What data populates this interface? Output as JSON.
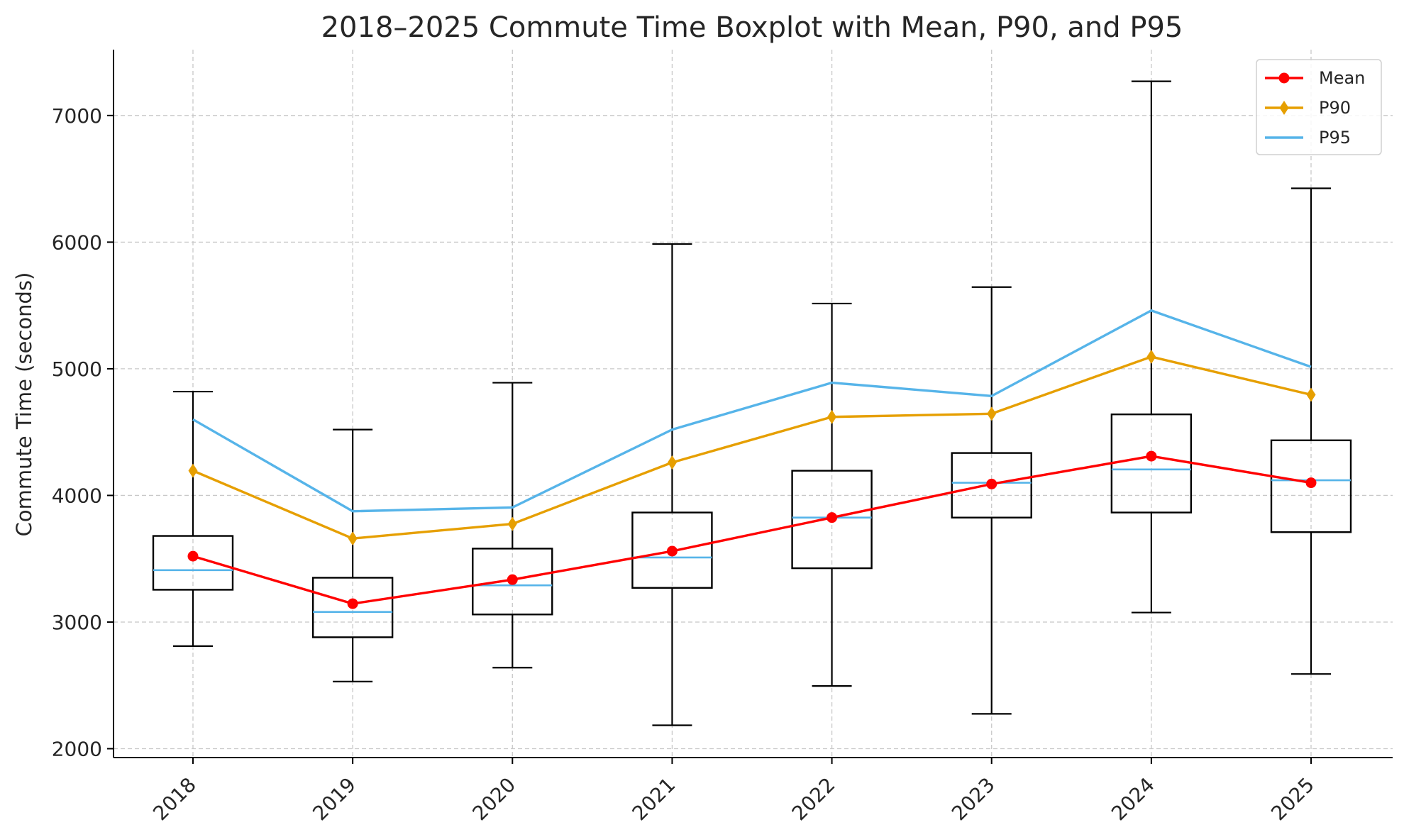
{
  "chart_data": {
    "type": "box",
    "title": "2018–2025 Commute Time Boxplot with Mean, P90, and P95",
    "xlabel": "",
    "ylabel": "Commute Time (seconds)",
    "categories": [
      "2018",
      "2019",
      "2020",
      "2021",
      "2022",
      "2023",
      "2024",
      "2025"
    ],
    "ylim": [
      1930,
      7520
    ],
    "yticks": [
      2000,
      3000,
      4000,
      5000,
      6000,
      7000
    ],
    "grid": true,
    "legend_position": "top-right",
    "boxes": [
      {
        "category": "2018",
        "whisker_low": 2810,
        "q1": 3255,
        "median": 3410,
        "q3": 3680,
        "whisker_high": 4820
      },
      {
        "category": "2019",
        "whisker_low": 2530,
        "q1": 2880,
        "median": 3080,
        "q3": 3350,
        "whisker_high": 4520
      },
      {
        "category": "2020",
        "whisker_low": 2640,
        "q1": 3060,
        "median": 3290,
        "q3": 3580,
        "whisker_high": 4890
      },
      {
        "category": "2021",
        "whisker_low": 2185,
        "q1": 3270,
        "median": 3510,
        "q3": 3865,
        "whisker_high": 5985
      },
      {
        "category": "2022",
        "whisker_low": 2495,
        "q1": 3425,
        "median": 3825,
        "q3": 4195,
        "whisker_high": 5515
      },
      {
        "category": "2023",
        "whisker_low": 2275,
        "q1": 3825,
        "median": 4100,
        "q3": 4335,
        "whisker_high": 5645
      },
      {
        "category": "2024",
        "whisker_low": 3075,
        "q1": 3865,
        "median": 4205,
        "q3": 4640,
        "whisker_high": 7270
      },
      {
        "category": "2025",
        "whisker_low": 2590,
        "q1": 3710,
        "median": 4120,
        "q3": 4435,
        "whisker_high": 6425
      }
    ],
    "series": [
      {
        "name": "Mean",
        "color": "#ff0000",
        "marker": "circle",
        "values": [
          3520,
          3145,
          3335,
          3560,
          3825,
          4090,
          4310,
          4100
        ]
      },
      {
        "name": "P90",
        "color": "#e69f00",
        "marker": "diamond",
        "values": [
          4195,
          3660,
          3775,
          4260,
          4620,
          4645,
          5095,
          4795
        ]
      },
      {
        "name": "P95",
        "color": "#56b4e9",
        "marker": "none",
        "values": [
          4600,
          3875,
          3905,
          4520,
          4890,
          4785,
          5460,
          5015
        ]
      }
    ]
  }
}
